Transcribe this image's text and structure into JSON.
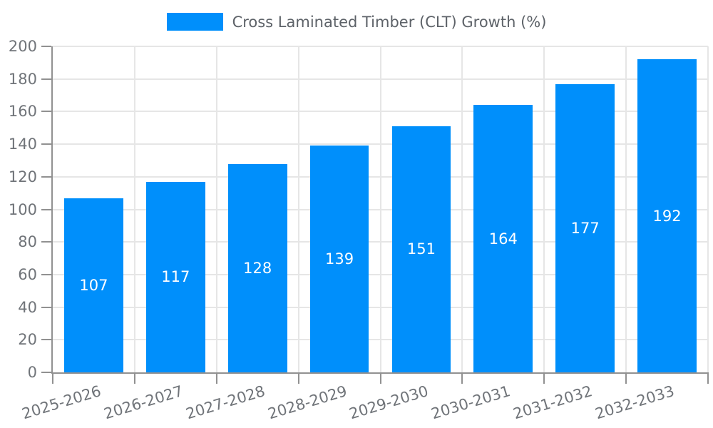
{
  "legend": {
    "label": "Cross Laminated Timber (CLT) Growth (%)"
  },
  "colors": {
    "bar": "#008FFB",
    "axis": "#919191",
    "grid": "#E6E6E6",
    "axis_label": "#707479",
    "legend_label": "#5D6268",
    "bar_label": "#FFFFFF",
    "background": "#FFFFFF"
  },
  "chart_data": {
    "type": "bar",
    "title": "Cross Laminated Timber (CLT) Growth (%)",
    "categories": [
      "2025-2026",
      "2026-2027",
      "2027-2028",
      "2028-2029",
      "2029-2030",
      "2030-2031",
      "2031-2032",
      "2032-2033"
    ],
    "series": [
      {
        "name": "Cross Laminated Timber (CLT) Growth (%)",
        "values": [
          107,
          117,
          128,
          139,
          151,
          164,
          177,
          192
        ]
      }
    ],
    "bar_labels": [
      107,
      117,
      128,
      139,
      151,
      164,
      177,
      192
    ],
    "xlabel": "",
    "ylabel": "",
    "ylim": [
      0,
      200
    ],
    "ytick_step": 20,
    "grid": true,
    "legend_position": "top"
  }
}
